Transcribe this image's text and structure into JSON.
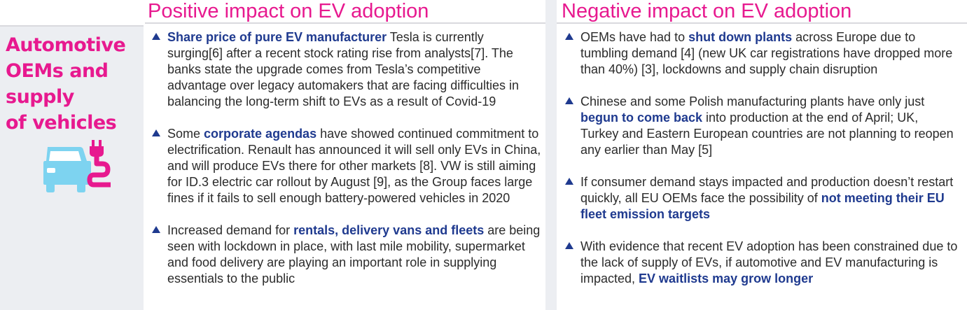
{
  "headers": {
    "positive": "Positive impact on EV adoption",
    "negative": "Negative impact on EV adoption"
  },
  "row": {
    "title": "Automotive OEMs and supply of vehicles",
    "title_lines": [
      "Automotive",
      "OEMs and",
      "supply",
      "of vehicles"
    ],
    "icon": "electric-car-plug-icon"
  },
  "colors": {
    "accent_pink": "#e7198f",
    "highlight_blue": "#1f3a8f",
    "icon_light_blue": "#7dd3f0"
  },
  "positive_bullets": [
    {
      "parts": [
        {
          "t": "Share price of pure EV manufacturer",
          "b": true
        },
        {
          "t": " Tesla is currently surging[6] after a recent stock rating rise from analysts[7]. The banks state the upgrade comes from Tesla’s competitive advantage over legacy automakers that are facing difficulties in balancing the long-term shift to EVs as a result of Covid-19",
          "b": false
        }
      ]
    },
    {
      "parts": [
        {
          "t": "Some ",
          "b": false
        },
        {
          "t": "corporate agendas",
          "b": true
        },
        {
          "t": " have showed continued commitment to electrification. Renault has announced it will sell only EVs in China, and will produce EVs there for other markets [8]. VW is still aiming for ID.3 electric car rollout by August [9], as the Group faces large fines if it fails to sell enough battery-powered vehicles in 2020",
          "b": false
        }
      ]
    },
    {
      "parts": [
        {
          "t": "Increased demand for ",
          "b": false
        },
        {
          "t": "rentals, delivery vans and fleets",
          "b": true
        },
        {
          "t": " are being seen with lockdown in place, with last mile mobility, supermarket and food delivery are playing an important role in supplying essentials to the public",
          "b": false
        }
      ]
    }
  ],
  "negative_bullets": [
    {
      "parts": [
        {
          "t": "OEMs have had to ",
          "b": false
        },
        {
          "t": "shut down plants",
          "b": true
        },
        {
          "t": " across Europe due to tumbling demand [4] (new UK car registrations have dropped more than 40%) [3], lockdowns and supply chain disruption",
          "b": false
        }
      ]
    },
    {
      "parts": [
        {
          "t": "Chinese and some Polish manufacturing plants have only just ",
          "b": false
        },
        {
          "t": "begun to come back",
          "b": true
        },
        {
          "t": " into production at the end of April; UK, Turkey and Eastern European countries are not planning to reopen any earlier than May [5]",
          "b": false
        }
      ]
    },
    {
      "parts": [
        {
          "t": "If consumer demand stays impacted and production doesn’t restart quickly, all EU OEMs face the possibility of ",
          "b": false
        },
        {
          "t": "not meeting their EU fleet emission targets",
          "b": true
        }
      ]
    },
    {
      "parts": [
        {
          "t": "With evidence that recent EV adoption has been constrained due to the lack of supply of EVs, if automotive and EV manufacturing is impacted, ",
          "b": false
        },
        {
          "t": "EV waitlists may grow longer",
          "b": true
        }
      ]
    }
  ]
}
